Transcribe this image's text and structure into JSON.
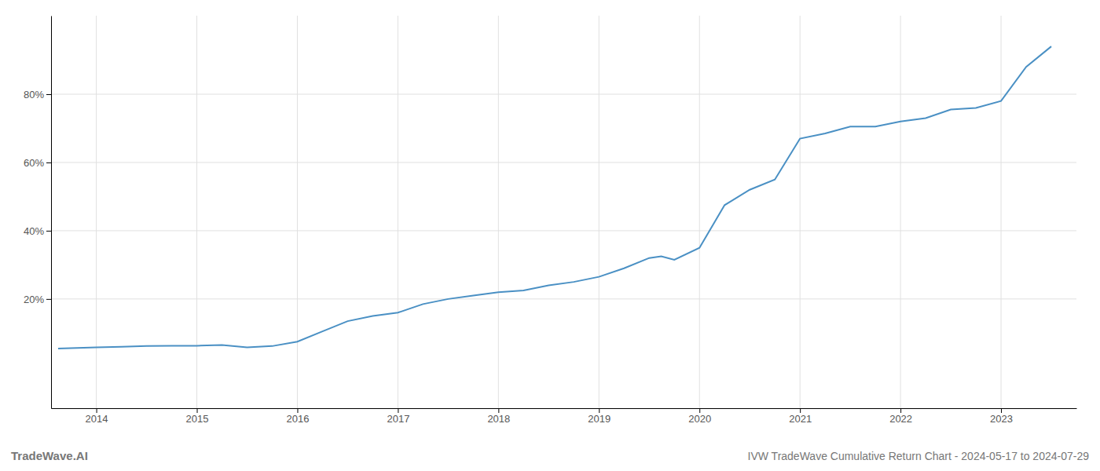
{
  "chart_data": {
    "type": "line",
    "title": "IVW TradeWave Cumulative Return Chart - 2024-05-17 to 2024-07-29",
    "annotations": [
      "TradeWave.AI"
    ],
    "color": "#4a90c4",
    "x": [
      2013.62,
      2014.0,
      2014.25,
      2014.5,
      2014.75,
      2015.0,
      2015.25,
      2015.5,
      2015.75,
      2016.0,
      2016.25,
      2016.5,
      2016.75,
      2017.0,
      2017.25,
      2017.5,
      2017.75,
      2018.0,
      2018.25,
      2018.5,
      2018.75,
      2019.0,
      2019.25,
      2019.5,
      2019.62,
      2019.75,
      2020.0,
      2020.25,
      2020.5,
      2020.75,
      2021.0,
      2021.25,
      2021.5,
      2021.75,
      2022.0,
      2022.25,
      2022.5,
      2022.75,
      2023.0,
      2023.25,
      2023.5
    ],
    "values": [
      5.5,
      5.8,
      6.0,
      6.2,
      6.3,
      6.3,
      6.5,
      5.8,
      6.2,
      7.5,
      10.5,
      13.5,
      15.0,
      16.0,
      18.5,
      20.0,
      21.0,
      22.0,
      22.5,
      24.0,
      25.0,
      26.5,
      29.0,
      32.0,
      32.5,
      31.5,
      35.0,
      47.5,
      52.0,
      55.0,
      67.0,
      68.5,
      70.5,
      70.5,
      72.0,
      73.0,
      75.5,
      76.0,
      78.0,
      88.0,
      94.0
    ],
    "xlim": [
      2013.55,
      2023.75
    ],
    "xticks": [
      2014,
      2015,
      2016,
      2017,
      2018,
      2019,
      2020,
      2021,
      2022,
      2023
    ],
    "ylim": [
      -12,
      103
    ],
    "yticks": [
      {
        "value": 20,
        "label": "20%"
      },
      {
        "value": 40,
        "label": "40%"
      },
      {
        "value": 60,
        "label": "60%"
      },
      {
        "value": 80,
        "label": "80%"
      }
    ],
    "grid": true
  }
}
